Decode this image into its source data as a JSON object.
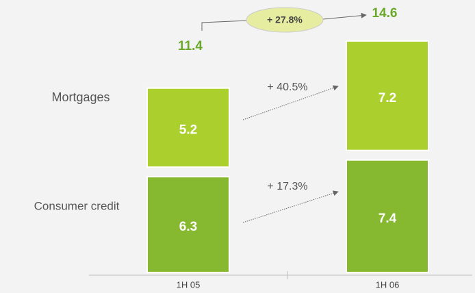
{
  "chart_data": {
    "type": "bar",
    "stacked": true,
    "categories": [
      "1H 05",
      "1H 06"
    ],
    "series": [
      {
        "name": "Consumer credit",
        "color": "#86b92f",
        "values": [
          6.3,
          7.4
        ]
      },
      {
        "name": "Mortgages",
        "color": "#abd02e",
        "values": [
          5.2,
          7.2
        ]
      }
    ],
    "totals": [
      11.4,
      14.6
    ],
    "total_growth": "+ 27.8%",
    "series_growth": [
      "+ 17.3%",
      "+ 40.5%"
    ]
  }
}
